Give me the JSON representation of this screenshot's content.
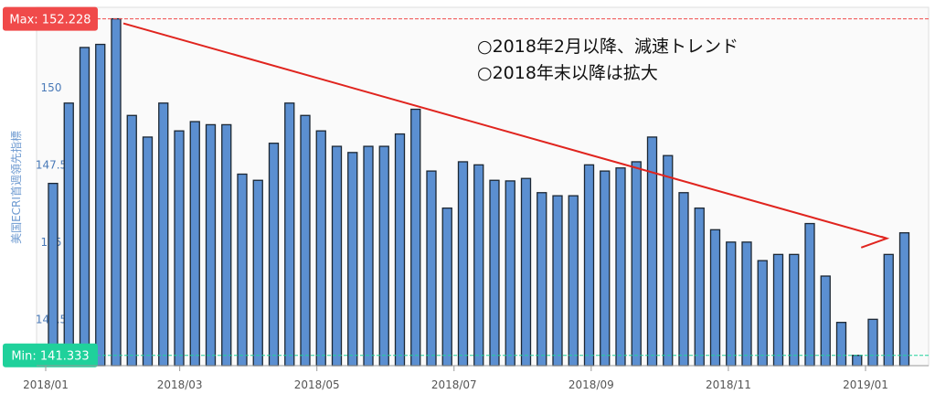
{
  "chart_data": {
    "type": "bar",
    "ylabel": "美国ECRI首週領先指標",
    "ylim": [
      141,
      152.6
    ],
    "y_ticks": [
      {
        "value": 150,
        "label": "150"
      },
      {
        "value": 147.5,
        "label": "147.5"
      },
      {
        "value": 145,
        "label": "145"
      },
      {
        "value": 142.5,
        "label": "142.5"
      }
    ],
    "x_ticks": [
      {
        "index": 0,
        "label": "2018/01"
      },
      {
        "index": 8.5,
        "label": "2018/03"
      },
      {
        "index": 17.2,
        "label": "2018/05"
      },
      {
        "index": 25.9,
        "label": "2018/07"
      },
      {
        "index": 34.6,
        "label": "2018/09"
      },
      {
        "index": 43.3,
        "label": "2018/11"
      },
      {
        "index": 52,
        "label": "2019/01"
      }
    ],
    "values": [
      146.9,
      149.5,
      151.3,
      151.4,
      152.228,
      149.1,
      148.4,
      149.5,
      148.6,
      148.9,
      148.8,
      148.8,
      147.2,
      147.0,
      148.2,
      149.5,
      149.1,
      148.6,
      148.1,
      147.9,
      148.1,
      148.1,
      148.5,
      149.3,
      147.3,
      146.1,
      147.6,
      147.5,
      147.0,
      146.98,
      147.06,
      146.6,
      146.5,
      146.5,
      147.5,
      147.3,
      147.4,
      147.6,
      148.4,
      147.8,
      146.6,
      146.1,
      145.4,
      145.0,
      145.0,
      144.4,
      144.6,
      144.6,
      145.6,
      143.9,
      142.4,
      141.333,
      142.5,
      144.6,
      145.3
    ],
    "max": {
      "label": "Max: 152.228",
      "value": 152.228
    },
    "min": {
      "label": "Min: 141.333",
      "value": 141.333
    },
    "annotations": [
      "○2018年2月以降、減速トレンド",
      "○2018年末以降は拡大"
    ],
    "trend_line": {
      "from_index": 4,
      "to_index": 53
    },
    "bar_color": "#5b8fd1",
    "bar_edge": "#1c2733",
    "trend_color": "#e0241e",
    "max_color": "#f04a4a",
    "min_color": "#1fd19b",
    "grid": false
  }
}
